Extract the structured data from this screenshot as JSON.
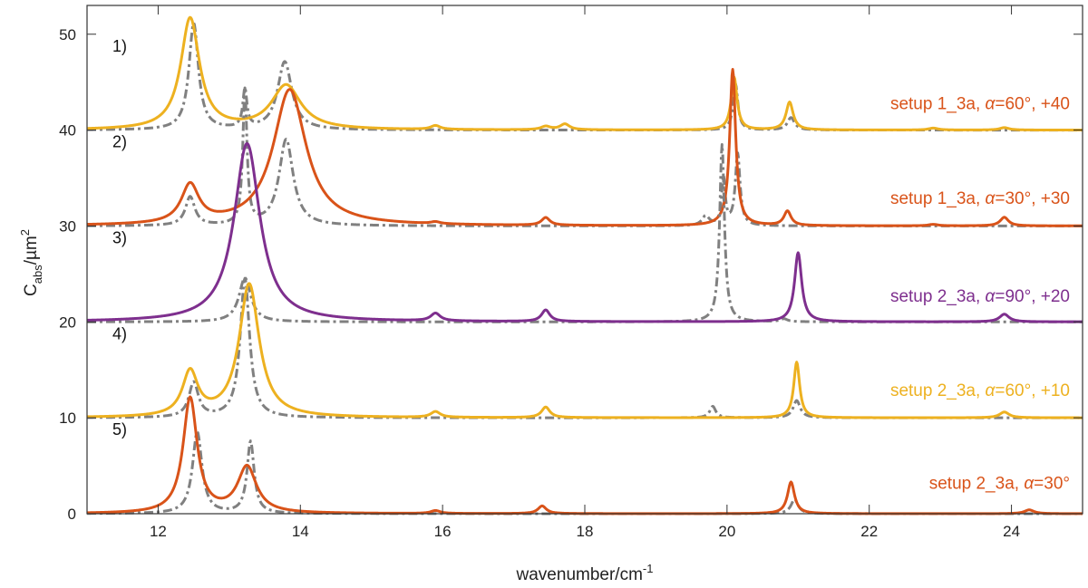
{
  "chart_data": {
    "type": "line",
    "title": "",
    "xlabel": "wavenumber/cm",
    "xlabel_sup": "-1",
    "ylabel": "C",
    "ylabel_sub": "abs",
    "ylabel_unit": "/µm",
    "ylabel_unit_sup": "2",
    "xlim": [
      11,
      25
    ],
    "ylim": [
      0,
      53
    ],
    "xticks": [
      12,
      14,
      16,
      18,
      20,
      22,
      24
    ],
    "yticks": [
      0,
      10,
      20,
      30,
      40,
      50
    ],
    "grid": false,
    "colors": {
      "yellow": "#EDB120",
      "orange": "#D95319",
      "purple": "#7E2F8E",
      "gray": "#808080"
    },
    "curves": [
      {
        "panel": "1)",
        "label_prefix": "setup 1_3a, ",
        "label_alpha": "α",
        "label_suffix": "=60°, +40",
        "color": "yellow",
        "label_color": "orange",
        "offset": 40,
        "label_y": 42.2,
        "solid_peaks": [
          [
            12.45,
            11.6,
            0.16
          ],
          [
            13.8,
            4.6,
            0.25
          ],
          [
            15.9,
            0.4,
            0.08
          ],
          [
            17.45,
            0.35,
            0.08
          ],
          [
            17.72,
            0.6,
            0.08
          ],
          [
            20.1,
            5.5,
            0.05
          ],
          [
            20.88,
            2.9,
            0.06
          ],
          [
            22.9,
            0.2,
            0.08
          ],
          [
            23.9,
            0.25,
            0.08
          ]
        ],
        "dashed_peaks": [
          [
            12.5,
            11.1,
            0.08
          ],
          [
            13.22,
            4.0,
            0.035
          ],
          [
            13.78,
            7.1,
            0.12
          ],
          [
            20.12,
            4.8,
            0.04
          ],
          [
            20.9,
            1.3,
            0.06
          ]
        ]
      },
      {
        "panel": "2)",
        "label_prefix": "setup 1_3a, ",
        "label_alpha": "α",
        "label_suffix": "=30°, +30",
        "color": "orange",
        "label_color": "orange",
        "offset": 30,
        "label_y": 32.3,
        "solid_peaks": [
          [
            12.45,
            4.0,
            0.15
          ],
          [
            13.85,
            14.2,
            0.28
          ],
          [
            15.9,
            0.2,
            0.08
          ],
          [
            17.45,
            0.8,
            0.07
          ],
          [
            20.08,
            16.3,
            0.05
          ],
          [
            20.85,
            1.5,
            0.06
          ],
          [
            22.9,
            0.15,
            0.08
          ],
          [
            23.9,
            0.9,
            0.07
          ]
        ],
        "dashed_peaks": [
          [
            12.45,
            3.0,
            0.08
          ],
          [
            13.22,
            14.0,
            0.035
          ],
          [
            13.8,
            9.0,
            0.12
          ],
          [
            19.7,
            1.0,
            0.06
          ],
          [
            19.95,
            5.0,
            0.03
          ],
          [
            20.15,
            7.5,
            0.04
          ]
        ]
      },
      {
        "panel": "3)",
        "label_prefix": "setup 2_3a, ",
        "label_alpha": "α",
        "label_suffix": "=90°, +20",
        "color": "purple",
        "label_color": "purple",
        "offset": 20,
        "label_y": 22.1,
        "solid_peaks": [
          [
            13.25,
            18.6,
            0.22
          ],
          [
            15.9,
            0.8,
            0.08
          ],
          [
            17.45,
            1.2,
            0.07
          ],
          [
            21.0,
            7.2,
            0.06
          ],
          [
            23.9,
            0.8,
            0.08
          ]
        ],
        "dashed_peaks": [
          [
            13.22,
            4.6,
            0.1
          ],
          [
            19.93,
            18.5,
            0.04
          ],
          [
            20.8,
            0.3,
            0.06
          ]
        ]
      },
      {
        "panel": "4)",
        "label_prefix": "setup 2_3a, ",
        "label_alpha": "α",
        "label_suffix": "=60°, +10",
        "color": "yellow",
        "label_color": "yellow",
        "offset": 10,
        "label_y": 12.3,
        "solid_peaks": [
          [
            12.45,
            4.6,
            0.13
          ],
          [
            13.28,
            13.9,
            0.17
          ],
          [
            15.9,
            0.6,
            0.08
          ],
          [
            17.45,
            1.1,
            0.07
          ],
          [
            20.98,
            5.8,
            0.05
          ],
          [
            23.9,
            0.6,
            0.08
          ]
        ],
        "dashed_peaks": [
          [
            12.5,
            3.6,
            0.08
          ],
          [
            13.22,
            14.5,
            0.08
          ],
          [
            19.8,
            1.2,
            0.05
          ],
          [
            20.98,
            1.8,
            0.06
          ]
        ]
      },
      {
        "panel": "5)",
        "label_prefix": "setup 2_3a, ",
        "label_alpha": "α",
        "label_suffix": "=30°",
        "color": "orange",
        "label_color": "orange",
        "offset": 0,
        "label_y": 2.6,
        "solid_peaks": [
          [
            12.45,
            12.0,
            0.12
          ],
          [
            13.25,
            4.8,
            0.16
          ],
          [
            15.9,
            0.3,
            0.08
          ],
          [
            17.4,
            0.8,
            0.07
          ],
          [
            20.9,
            3.3,
            0.06
          ],
          [
            24.25,
            0.4,
            0.08
          ]
        ],
        "dashed_peaks": [
          [
            12.55,
            8.5,
            0.08
          ],
          [
            13.3,
            7.5,
            0.06
          ],
          [
            20.95,
            1.5,
            0.06
          ]
        ]
      }
    ]
  }
}
